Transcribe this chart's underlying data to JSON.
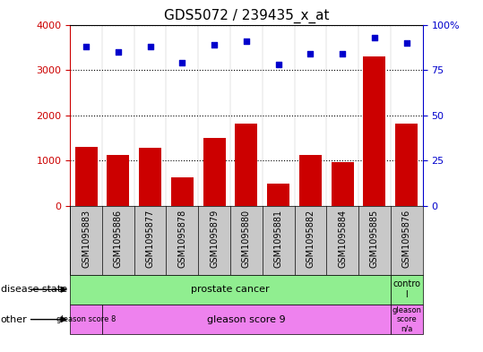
{
  "title": "GDS5072 / 239435_x_at",
  "samples": [
    "GSM1095883",
    "GSM1095886",
    "GSM1095877",
    "GSM1095878",
    "GSM1095879",
    "GSM1095880",
    "GSM1095881",
    "GSM1095882",
    "GSM1095884",
    "GSM1095885",
    "GSM1095876"
  ],
  "counts": [
    1300,
    1130,
    1280,
    630,
    1500,
    1820,
    500,
    1120,
    970,
    3300,
    1820
  ],
  "percentile": [
    88,
    85,
    88,
    79,
    89,
    91,
    78,
    84,
    84,
    93,
    90
  ],
  "ylim_left": [
    0,
    4000
  ],
  "ylim_right": [
    0,
    100
  ],
  "yticks_left": [
    0,
    1000,
    2000,
    3000,
    4000
  ],
  "yticks_right": [
    0,
    25,
    50,
    75,
    100
  ],
  "ytick_right_labels": [
    "0",
    "25",
    "50",
    "75",
    "100%"
  ],
  "bar_color": "#cc0000",
  "dot_color": "#0000cc",
  "legend_count_color": "#cc0000",
  "legend_dot_color": "#0000cc",
  "ticklabel_bg": "#c8c8c8",
  "green_color": "#90ee90",
  "pink_color": "#ee82ee",
  "plot_bg_color": "#ffffff"
}
